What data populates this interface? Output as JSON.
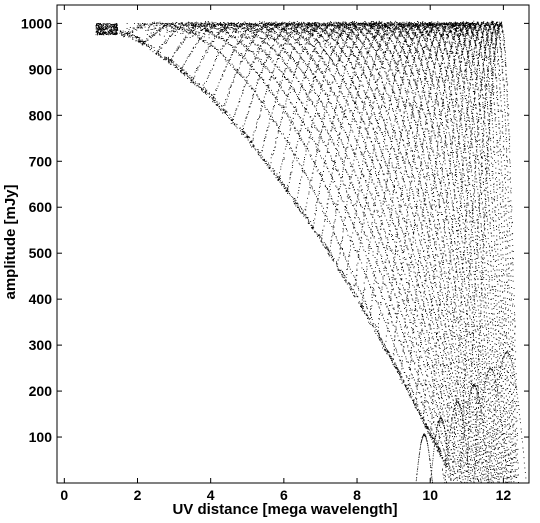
{
  "chart_data": {
    "type": "scatter",
    "title": "",
    "xlabel": "UV distance [mega wavelength]",
    "ylabel": "amplitude [mJy]",
    "xlim": [
      -0.2,
      12.7
    ],
    "ylim": [
      0,
      1040
    ],
    "xticks": [
      0,
      2,
      4,
      6,
      8,
      10,
      12
    ],
    "yticks": [
      100,
      200,
      300,
      400,
      500,
      600,
      700,
      800,
      900,
      1000
    ],
    "grid": false,
    "legend": "none",
    "marker_color": "#000000",
    "envelope": {
      "description_of_shape": "lower envelope of points",
      "x": [
        1.5,
        2,
        3,
        4,
        5,
        6,
        7,
        8,
        9,
        10,
        10.5
      ],
      "y": [
        975,
        960,
        905,
        835,
        745,
        640,
        525,
        395,
        255,
        100,
        25
      ]
    },
    "tracks": {
      "count": 40,
      "x_start_range": [
        1.6,
        11.2
      ],
      "peak_amplitude": 1000,
      "x_end_range": [
        10.2,
        12.4
      ]
    },
    "cluster": {
      "x_range": [
        0.85,
        1.45
      ],
      "y_range": [
        975,
        1000
      ]
    },
    "tail_arcs": [
      {
        "x_range": [
          9.6,
          12.35
        ],
        "peak": 300
      }
    ]
  }
}
